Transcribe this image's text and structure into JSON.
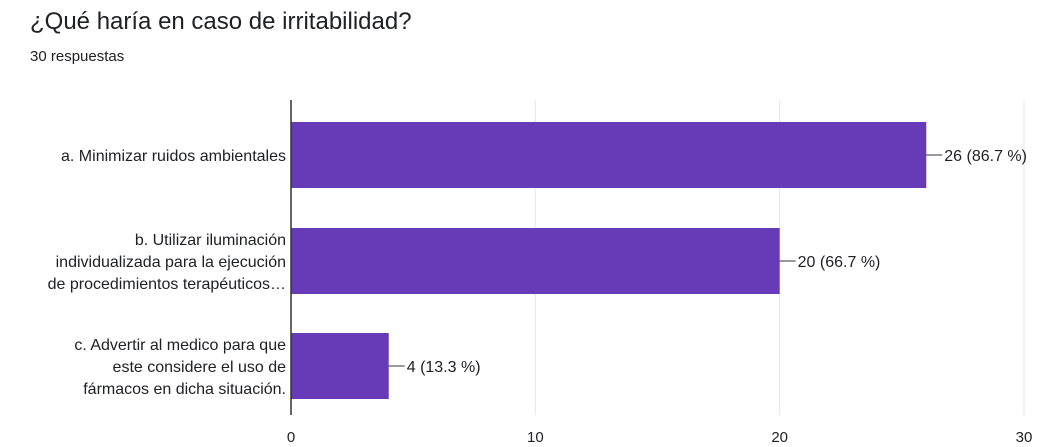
{
  "header": {
    "question": "¿Qué haría en caso de irritabilidad?",
    "responses": "30 respuestas"
  },
  "colors": {
    "bar": "#673ab7",
    "grid": "#e6e6e6",
    "axis": "#333333",
    "text": "#202124"
  },
  "chart_data": {
    "type": "bar",
    "orientation": "horizontal",
    "categories": [
      [
        "a. Minimizar ruidos ambientales"
      ],
      [
        "b. Utilizar iluminación",
        "individualizada para la ejecución",
        "de procedimientos terapéuticos…"
      ],
      [
        "c. Advertir al medico para que",
        "este considere el uso de",
        "fármacos en dicha situación."
      ]
    ],
    "values": [
      26,
      20,
      4
    ],
    "data_labels": [
      "26 (86.7 %)",
      "20 (66.7 %)",
      "4 (13.3 %)"
    ],
    "xlim": [
      0,
      30
    ],
    "xticks": [
      0,
      10,
      20,
      30
    ],
    "grid": true,
    "legend": "none"
  }
}
